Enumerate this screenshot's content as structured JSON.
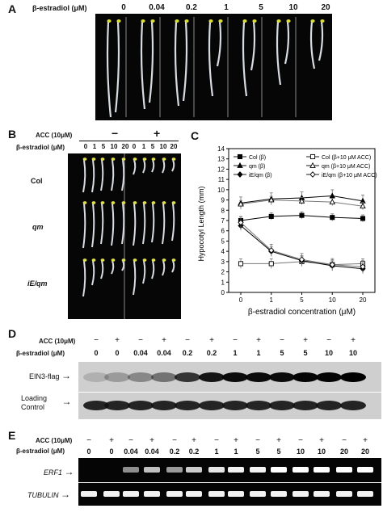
{
  "panel_A": {
    "letter": "A",
    "row_label": "β-estradiol (μM)",
    "concentrations": [
      "0",
      "0.04",
      "0.2",
      "1",
      "5",
      "10",
      "20"
    ]
  },
  "panel_B": {
    "letter": "B",
    "acc_label": "ACC (10μM)",
    "acc_minus": "−",
    "acc_plus": "+",
    "estradiol_label": "β-estradiol (μM)",
    "concentrations": [
      "0",
      "1",
      "5",
      "10",
      "20",
      "0",
      "1",
      "5",
      "10",
      "20"
    ],
    "genotypes": [
      "Col",
      "qm",
      "iE/qm"
    ]
  },
  "panel_C": {
    "letter": "C",
    "chart_data": {
      "type": "line",
      "x": [
        0,
        1,
        5,
        10,
        20
      ],
      "x_tick_labels": [
        "0",
        "1",
        "5",
        "10",
        "20"
      ],
      "xlabel": "β-estradiol concentration (μM)",
      "ylabel": "Hypocotyl Length (mm)",
      "ylim": [
        0,
        14
      ],
      "y_ticks": [
        "0",
        "1",
        "2",
        "3",
        "4",
        "5",
        "6",
        "7",
        "8",
        "9",
        "10",
        "11",
        "12",
        "13",
        "14"
      ],
      "legend_position": "top",
      "series": [
        {
          "name": "Col (β)",
          "values": [
            7.0,
            7.4,
            7.5,
            7.3,
            7.2
          ],
          "marker": "filled-square"
        },
        {
          "name": "Col (β+10 μM ACC)",
          "values": [
            2.8,
            2.8,
            3.0,
            2.7,
            2.8
          ],
          "marker": "open-square"
        },
        {
          "name": "qm (β)",
          "values": [
            8.7,
            9.1,
            9.2,
            9.4,
            8.9
          ],
          "marker": "filled-triangle"
        },
        {
          "name": "qm (β+10 μM ACC)",
          "values": [
            8.6,
            9.0,
            8.9,
            8.8,
            8.4
          ],
          "marker": "open-triangle"
        },
        {
          "name": "iE/qm (β)",
          "values": [
            6.5,
            4.0,
            3.1,
            2.6,
            2.3
          ],
          "marker": "filled-diamond"
        },
        {
          "name": "iE/qm (β+10 μM ACC)",
          "values": [
            6.8,
            4.1,
            3.2,
            2.7,
            2.5
          ],
          "marker": "open-diamond"
        }
      ]
    }
  },
  "panel_D": {
    "letter": "D",
    "acc_label": "ACC (10μM)",
    "estradiol_label": "β-estradiol (μM)",
    "acc_signs": [
      "−",
      "+",
      "−",
      "+",
      "−",
      "+",
      "−",
      "+",
      "−",
      "+",
      "−",
      "+"
    ],
    "concentrations": [
      "0",
      "0",
      "0.04",
      "0.04",
      "0.2",
      "0.2",
      "1",
      "1",
      "5",
      "5",
      "10",
      "10"
    ],
    "blot_labels": [
      "EIN3-flag",
      "Loading Control"
    ],
    "arrow": "→"
  },
  "panel_E": {
    "letter": "E",
    "acc_label": "ACC (10μM)",
    "estradiol_label": "β-estradiol (μM)",
    "acc_signs": [
      "−",
      "+",
      "−",
      "+",
      "−",
      "+",
      "−",
      "+",
      "−",
      "+",
      "−",
      "+",
      "−",
      "+"
    ],
    "concentrations": [
      "0",
      "0",
      "0.04",
      "0.04",
      "0.2",
      "0.2",
      "1",
      "1",
      "5",
      "5",
      "10",
      "10",
      "20",
      "20"
    ],
    "gel_labels": [
      "ERF1",
      "TUBULIN"
    ],
    "arrow": "→"
  }
}
